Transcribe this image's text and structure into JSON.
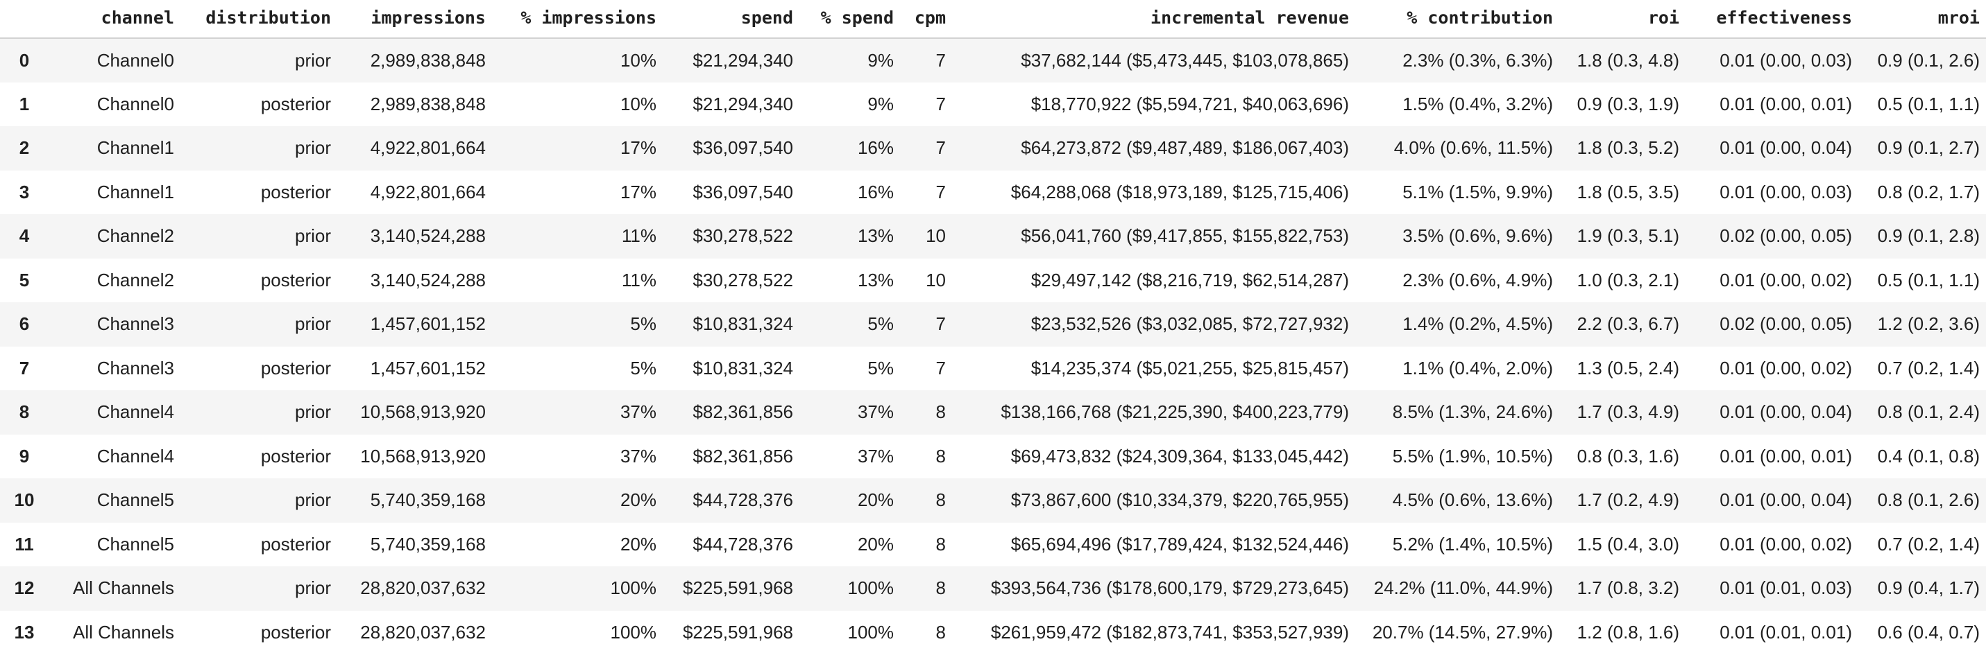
{
  "table": {
    "index_header": "",
    "columns": [
      "channel",
      "distribution",
      "impressions",
      "% impressions",
      "spend",
      "% spend",
      "cpm",
      "incremental revenue",
      "% contribution",
      "roi",
      "effectiveness",
      "mroi"
    ],
    "column_keys": [
      "channel",
      "distribution",
      "impressions",
      "pct-impressions",
      "spend",
      "pct-spend",
      "cpm",
      "incremental-revenue",
      "pct-contribution",
      "roi",
      "effectiveness",
      "mroi"
    ],
    "rows": [
      {
        "index": "0",
        "cells": [
          "Channel0",
          "prior",
          "2,989,838,848",
          "10%",
          "$21,294,340",
          "9%",
          "7",
          "$37,682,144 ($5,473,445, $103,078,865)",
          "2.3% (0.3%, 6.3%)",
          "1.8 (0.3, 4.8)",
          "0.01 (0.00, 0.03)",
          "0.9 (0.1, 2.6)"
        ]
      },
      {
        "index": "1",
        "cells": [
          "Channel0",
          "posterior",
          "2,989,838,848",
          "10%",
          "$21,294,340",
          "9%",
          "7",
          "$18,770,922 ($5,594,721, $40,063,696)",
          "1.5% (0.4%, 3.2%)",
          "0.9 (0.3, 1.9)",
          "0.01 (0.00, 0.01)",
          "0.5 (0.1, 1.1)"
        ]
      },
      {
        "index": "2",
        "cells": [
          "Channel1",
          "prior",
          "4,922,801,664",
          "17%",
          "$36,097,540",
          "16%",
          "7",
          "$64,273,872 ($9,487,489, $186,067,403)",
          "4.0% (0.6%, 11.5%)",
          "1.8 (0.3, 5.2)",
          "0.01 (0.00, 0.04)",
          "0.9 (0.1, 2.7)"
        ]
      },
      {
        "index": "3",
        "cells": [
          "Channel1",
          "posterior",
          "4,922,801,664",
          "17%",
          "$36,097,540",
          "16%",
          "7",
          "$64,288,068 ($18,973,189, $125,715,406)",
          "5.1% (1.5%, 9.9%)",
          "1.8 (0.5, 3.5)",
          "0.01 (0.00, 0.03)",
          "0.8 (0.2, 1.7)"
        ]
      },
      {
        "index": "4",
        "cells": [
          "Channel2",
          "prior",
          "3,140,524,288",
          "11%",
          "$30,278,522",
          "13%",
          "10",
          "$56,041,760 ($9,417,855, $155,822,753)",
          "3.5% (0.6%, 9.6%)",
          "1.9 (0.3, 5.1)",
          "0.02 (0.00, 0.05)",
          "0.9 (0.1, 2.8)"
        ]
      },
      {
        "index": "5",
        "cells": [
          "Channel2",
          "posterior",
          "3,140,524,288",
          "11%",
          "$30,278,522",
          "13%",
          "10",
          "$29,497,142 ($8,216,719, $62,514,287)",
          "2.3% (0.6%, 4.9%)",
          "1.0 (0.3, 2.1)",
          "0.01 (0.00, 0.02)",
          "0.5 (0.1, 1.1)"
        ]
      },
      {
        "index": "6",
        "cells": [
          "Channel3",
          "prior",
          "1,457,601,152",
          "5%",
          "$10,831,324",
          "5%",
          "7",
          "$23,532,526 ($3,032,085, $72,727,932)",
          "1.4% (0.2%, 4.5%)",
          "2.2 (0.3, 6.7)",
          "0.02 (0.00, 0.05)",
          "1.2 (0.2, 3.6)"
        ]
      },
      {
        "index": "7",
        "cells": [
          "Channel3",
          "posterior",
          "1,457,601,152",
          "5%",
          "$10,831,324",
          "5%",
          "7",
          "$14,235,374 ($5,021,255, $25,815,457)",
          "1.1% (0.4%, 2.0%)",
          "1.3 (0.5, 2.4)",
          "0.01 (0.00, 0.02)",
          "0.7 (0.2, 1.4)"
        ]
      },
      {
        "index": "8",
        "cells": [
          "Channel4",
          "prior",
          "10,568,913,920",
          "37%",
          "$82,361,856",
          "37%",
          "8",
          "$138,166,768 ($21,225,390, $400,223,779)",
          "8.5% (1.3%, 24.6%)",
          "1.7 (0.3, 4.9)",
          "0.01 (0.00, 0.04)",
          "0.8 (0.1, 2.4)"
        ]
      },
      {
        "index": "9",
        "cells": [
          "Channel4",
          "posterior",
          "10,568,913,920",
          "37%",
          "$82,361,856",
          "37%",
          "8",
          "$69,473,832 ($24,309,364, $133,045,442)",
          "5.5% (1.9%, 10.5%)",
          "0.8 (0.3, 1.6)",
          "0.01 (0.00, 0.01)",
          "0.4 (0.1, 0.8)"
        ]
      },
      {
        "index": "10",
        "cells": [
          "Channel5",
          "prior",
          "5,740,359,168",
          "20%",
          "$44,728,376",
          "20%",
          "8",
          "$73,867,600 ($10,334,379, $220,765,955)",
          "4.5% (0.6%, 13.6%)",
          "1.7 (0.2, 4.9)",
          "0.01 (0.00, 0.04)",
          "0.8 (0.1, 2.6)"
        ]
      },
      {
        "index": "11",
        "cells": [
          "Channel5",
          "posterior",
          "5,740,359,168",
          "20%",
          "$44,728,376",
          "20%",
          "8",
          "$65,694,496 ($17,789,424, $132,524,446)",
          "5.2% (1.4%, 10.5%)",
          "1.5 (0.4, 3.0)",
          "0.01 (0.00, 0.02)",
          "0.7 (0.2, 1.4)"
        ]
      },
      {
        "index": "12",
        "cells": [
          "All Channels",
          "prior",
          "28,820,037,632",
          "100%",
          "$225,591,968",
          "100%",
          "8",
          "$393,564,736 ($178,600,179, $729,273,645)",
          "24.2% (11.0%, 44.9%)",
          "1.7 (0.8, 3.2)",
          "0.01 (0.01, 0.03)",
          "0.9 (0.4, 1.7)"
        ]
      },
      {
        "index": "13",
        "cells": [
          "All Channels",
          "posterior",
          "28,820,037,632",
          "100%",
          "$225,591,968",
          "100%",
          "8",
          "$261,959,472 ($182,873,741, $353,527,939)",
          "20.7% (14.5%, 27.9%)",
          "1.2 (0.8, 1.6)",
          "0.01 (0.01, 0.01)",
          "0.6 (0.4, 0.7)"
        ]
      }
    ],
    "colors": {
      "row_stripe": "#f5f5f5",
      "row_plain": "#ffffff",
      "header_rule": "#d2d2d2",
      "text": "#1f1f1f"
    }
  }
}
